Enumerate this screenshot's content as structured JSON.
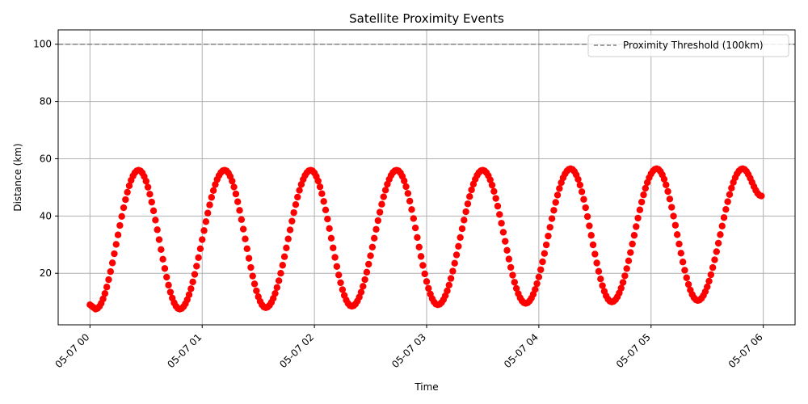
{
  "chart_data": {
    "type": "scatter",
    "title": "Satellite Proximity Events",
    "xlabel": "Time",
    "ylabel": "Distance (km)",
    "x_unit": "time (2024-05-07, HH:MM)",
    "xlim": [
      "2024-05-06T23:43",
      "2024-05-07T06:17"
    ],
    "ylim": [
      2,
      105
    ],
    "grid": true,
    "legend_position": "upper right",
    "x_ticks": [
      {
        "t": "2024-05-07T00:00",
        "label": "05-07 00"
      },
      {
        "t": "2024-05-07T01:00",
        "label": "05-07 01"
      },
      {
        "t": "2024-05-07T02:00",
        "label": "05-07 02"
      },
      {
        "t": "2024-05-07T03:00",
        "label": "05-07 03"
      },
      {
        "t": "2024-05-07T04:00",
        "label": "05-07 04"
      },
      {
        "t": "2024-05-07T05:00",
        "label": "05-07 05"
      },
      {
        "t": "2024-05-07T06:00",
        "label": "05-07 06"
      }
    ],
    "y_ticks": [
      {
        "v": 20,
        "label": "20"
      },
      {
        "v": 40,
        "label": "40"
      },
      {
        "v": 60,
        "label": "60"
      },
      {
        "v": 80,
        "label": "80"
      },
      {
        "v": 100,
        "label": "100"
      }
    ],
    "threshold": {
      "value": 100,
      "label": "Proximity Threshold (100km)",
      "style": "dashed",
      "color": "#808080"
    },
    "series": [
      {
        "color": "#ff0000",
        "marker": "circle",
        "sampling": "one point per minute, 00:00 to 05:59",
        "x_start": "2024-05-07T00:00",
        "x_end": "2024-05-07T05:59",
        "minima": [
          {
            "t": "2024-05-07T00:03",
            "v": 7.5
          },
          {
            "t": "2024-05-07T00:48",
            "v": 7.5
          },
          {
            "t": "2024-05-07T01:34",
            "v": 8
          },
          {
            "t": "2024-05-07T02:20",
            "v": 8.5
          },
          {
            "t": "2024-05-07T03:06",
            "v": 9
          },
          {
            "t": "2024-05-07T03:53",
            "v": 9.5
          },
          {
            "t": "2024-05-07T04:39",
            "v": 10
          },
          {
            "t": "2024-05-07T05:25",
            "v": 10.5
          }
        ],
        "maxima": [
          {
            "t": "2024-05-07T00:26",
            "v": 56
          },
          {
            "t": "2024-05-07T01:12",
            "v": 56
          },
          {
            "t": "2024-05-07T01:58",
            "v": 56
          },
          {
            "t": "2024-05-07T02:44",
            "v": 56
          },
          {
            "t": "2024-05-07T03:30",
            "v": 56
          },
          {
            "t": "2024-05-07T04:17",
            "v": 56.5
          },
          {
            "t": "2024-05-07T05:03",
            "v": 56.5
          },
          {
            "t": "2024-05-07T05:49",
            "v": 56.5
          }
        ],
        "start_value": 9,
        "end_value": 47
      }
    ]
  }
}
